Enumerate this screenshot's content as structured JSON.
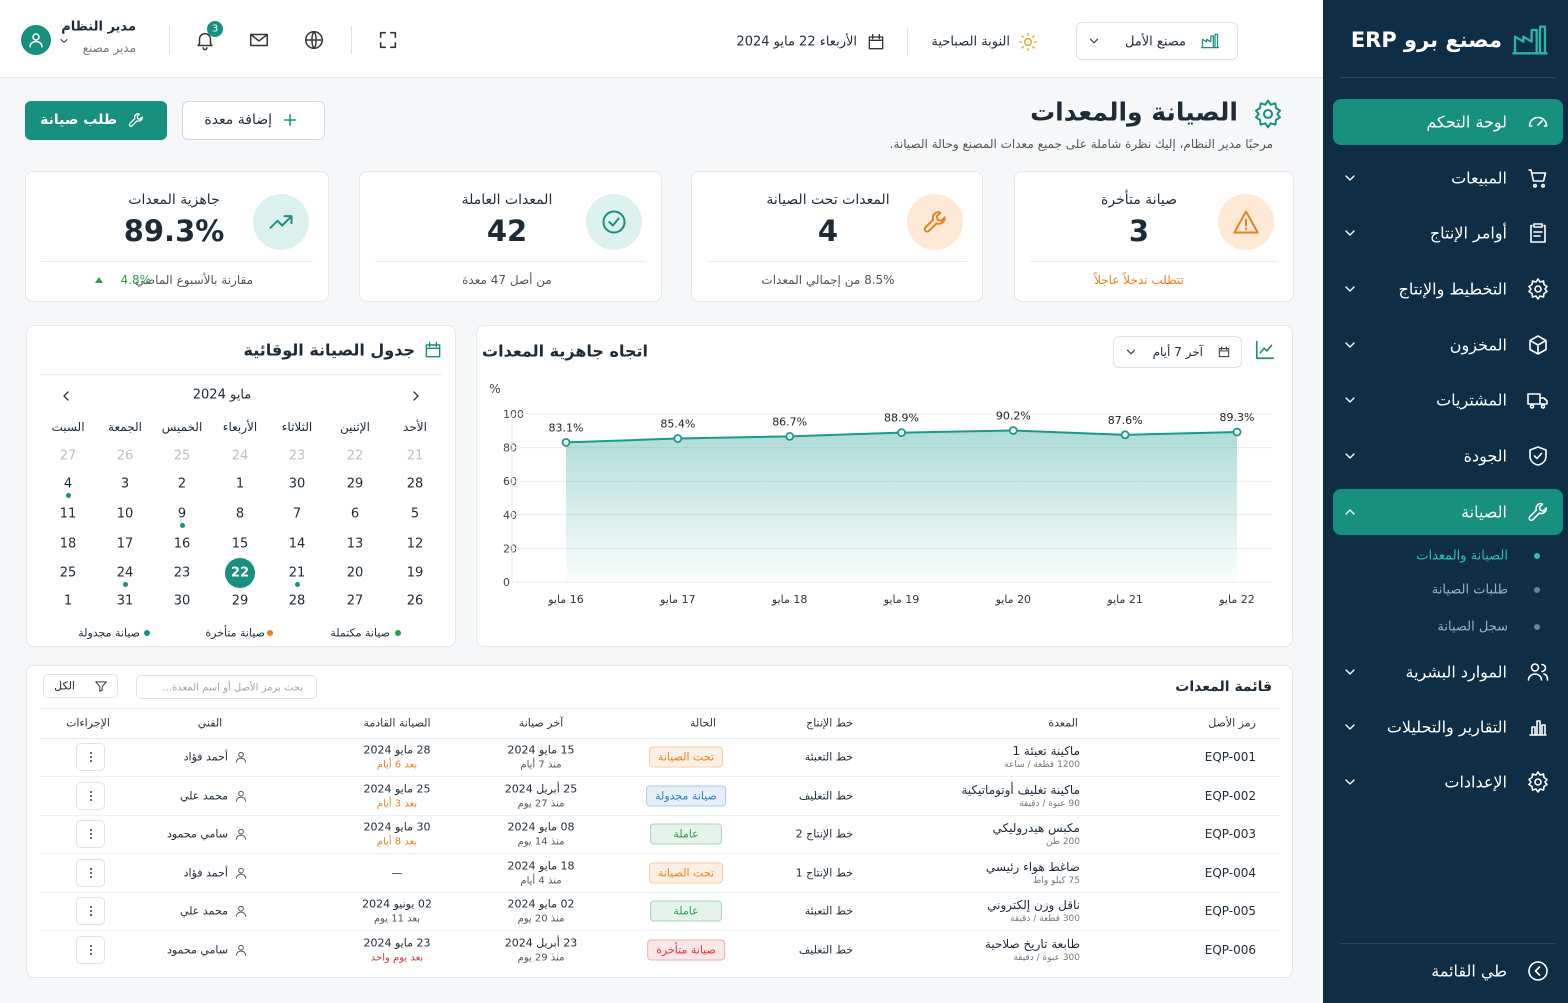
{
  "sidebar": {
    "brand": "مصنع برو ERP",
    "menu": [
      "لوحة التحكم",
      "المبيعات",
      "أوامر الإنتاج",
      "التخطيط والإنتاج",
      "المخزون",
      "المشتريات",
      "الجودة",
      "الصيانة",
      "الموارد البشرية",
      "التقارير والتحليلات",
      "الإعدادات"
    ],
    "submenu": [
      "الصيانة والمعدات",
      "طلبات الصيانة",
      "سجل الصيانة"
    ],
    "collapse": "طي القائمة"
  },
  "topbar": {
    "factory": "مصنع الأمل",
    "shift": "النوبة الصباحية",
    "date": "الأربعاء 22 مايو 2024",
    "notifications": 3,
    "user_name": "مدير النظام",
    "user_role": "مدير مصنع"
  },
  "header": {
    "title": "الصيانة والمعدات",
    "subtitle": "مرحبًا مدير النظام، إليك نظرة شاملة على جميع معدات المصنع وحالة الصيانة.",
    "add_button": "إضافة معدة",
    "request_button": "طلب صيانة"
  },
  "kpis": [
    {
      "label": "صيانة متأخرة",
      "value": 3,
      "note": "تتطلب تدخلاً عاجلاً"
    },
    {
      "label": "المعدات تحت الصيانة",
      "value": 4,
      "note": "8.5% من إجمالي المعدات"
    },
    {
      "label": "المعدات العاملة",
      "value": 42,
      "note": "من أصل 47 معدة"
    },
    {
      "label": "جاهزية المعدات",
      "value": "89.3%",
      "note": "مقارنة بالأسبوع الماضي",
      "change": "4.8%"
    }
  ],
  "chart_data": {
    "type": "line",
    "title": "اتجاه جاهزية المعدات",
    "range_selector": "آخر 7 أيام",
    "y_label": "%",
    "categories": [
      "16 مايو",
      "17 مايو",
      "18 مايو",
      "19 مايو",
      "20 مايو",
      "21 مايو",
      "22 مايو"
    ],
    "values": [
      83.1,
      85.4,
      86.7,
      88.9,
      90.2,
      87.6,
      89.3
    ],
    "value_labels": [
      "83.1%",
      "85.4%",
      "86.7%",
      "88.9%",
      "90.2%",
      "87.6%",
      "89.3%"
    ],
    "color": "#1a9a8c",
    "ylim": [
      0,
      100
    ],
    "yticks": [
      0,
      20,
      40,
      60,
      80,
      100
    ],
    "grid": true
  },
  "calendar": {
    "title": "جدول الصيانة الوقائية",
    "month": "مايو 2024",
    "weekdays": [
      "الأحد",
      "الإثنين",
      "الثلاثاء",
      "الأربعاء",
      "الخميس",
      "الجمعة",
      "السبت"
    ],
    "weeks": [
      [
        21,
        22,
        23,
        24,
        25,
        26,
        27
      ],
      [
        28,
        29,
        30,
        1,
        2,
        3,
        4
      ],
      [
        5,
        6,
        7,
        8,
        9,
        10,
        11
      ],
      [
        12,
        13,
        14,
        15,
        16,
        17,
        18
      ],
      [
        19,
        20,
        21,
        22,
        23,
        24,
        25
      ],
      [
        26,
        27,
        28,
        29,
        30,
        31,
        1
      ]
    ],
    "legend": [
      {
        "label": "صيانة مكتملة",
        "color": "#2e9a4f"
      },
      {
        "label": "صيانة متأخرة",
        "color": "#e8821e"
      },
      {
        "label": "صيانة مجدولة",
        "color": "#17907f"
      }
    ]
  },
  "table": {
    "title": "قائمة المعدات",
    "search_placeholder": "بحث برمز الأصل أو اسم المعدة...",
    "filter": "الكل",
    "columns": [
      "رمز الأصل",
      "المعدة",
      "خط الإنتاج",
      "الحالة",
      "آخر صيانة",
      "الصيانة القادمة",
      "الفني",
      "الإجراءات"
    ],
    "rows": [
      {
        "code": "EQP-001",
        "name": "ماكينة تعبئة 1",
        "capacity": "1200 قطعة / ساعة",
        "line": "خط التعبئة",
        "status": "تحت الصيانة",
        "status_color": "#e8821e",
        "last": "15 مايو 2024",
        "last_ago": "منذ 7 أيام",
        "next": "28 مايو 2024",
        "next_in": "بعد 6 أيام",
        "next_color": "#e8821e",
        "technician": "أحمد فؤاد"
      },
      {
        "code": "EQP-002",
        "name": "ماكينة تغليف أوتوماتيكية",
        "capacity": "90 عبوة / دقيقة",
        "line": "خط التغليف",
        "status": "صيانة مجدولة",
        "status_color": "#2f7fc8",
        "last": "25 أبريل 2024",
        "last_ago": "منذ 27 يوم",
        "next": "25 مايو 2024",
        "next_in": "بعد 3 أيام",
        "next_color": "#e8821e",
        "technician": "محمد علي"
      },
      {
        "code": "EQP-003",
        "name": "مكبس هيدروليكي",
        "capacity": "200 طن",
        "line": "خط الإنتاج 2",
        "status": "عاملة",
        "status_color": "#2e9a4f",
        "last": "08 مايو 2024",
        "last_ago": "منذ 14 يوم",
        "next": "30 مايو 2024",
        "next_in": "بعد 8 أيام",
        "next_color": "#e8821e",
        "technician": "سامي محمود"
      },
      {
        "code": "EQP-004",
        "name": "ضاغط هواء رئيسي",
        "capacity": "75 كيلو واط",
        "line": "خط الإنتاج 1",
        "status": "تحت الصيانة",
        "status_color": "#e8821e",
        "last": "18 مايو 2024",
        "last_ago": "منذ 4 أيام",
        "next": "—",
        "technician": "أحمد فؤاد"
      },
      {
        "code": "EQP-005",
        "name": "ناقل وزن إلكتروني",
        "capacity": "300 قطعة / دقيقة",
        "line": "خط التعبئة",
        "status": "عاملة",
        "status_color": "#2e9a4f",
        "last": "02 مايو 2024",
        "last_ago": "منذ 20 يوم",
        "next": "02 يونيو 2024",
        "next_in": "بعد 11 يوم",
        "next_color": "#555555",
        "technician": "محمد علي"
      },
      {
        "code": "EQP-006",
        "name": "طابعة تاريخ صلاحية",
        "capacity": "300 عبوة / دقيقة",
        "line": "خط التغليف",
        "status": "صيانة متأخرة",
        "status_color": "#d93838",
        "last": "23 أبريل 2024",
        "last_ago": "منذ 29 يوم",
        "next": "23 مايو 2024",
        "next_in": "بعد يوم واحد",
        "next_color": "#d93838",
        "technician": "سامي محمود"
      }
    ]
  }
}
